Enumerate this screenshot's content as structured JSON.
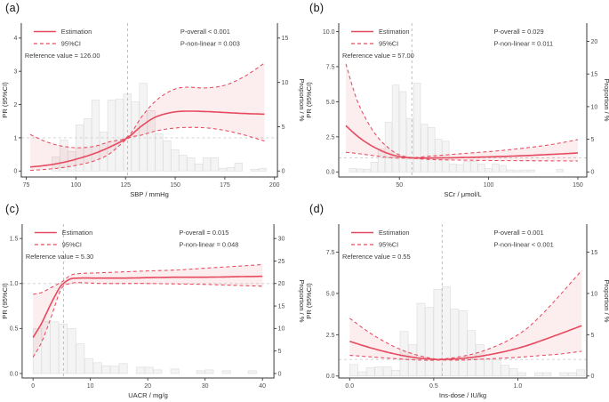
{
  "colors": {
    "accent": "#e64a5f",
    "ci_band": "rgba(230,74,95,0.10)",
    "hist_fill": "#f4f4f4",
    "hist_stroke": "#dfdfdf",
    "ref_line_vertical": "#b9b9b9",
    "ref_line_horizontal": "#cdcdcd",
    "axis": "#3a3a3a",
    "tick_text": "#4d4d4d",
    "title_text": "#2e2e2e",
    "annotation_text": "#3d3d3d"
  },
  "chart_data": [
    {
      "panel": "a",
      "label": "(a)",
      "type": "line",
      "xlabel": "SBP / mmHg",
      "ylabel_left": "PR (95%CI)",
      "ylabel_right": "Proportion / %",
      "legend": {
        "estimation": "Estimation",
        "ci": "95%CI",
        "reference": "Reference value = 126.00"
      },
      "p_overall": "P-overall < 0.001",
      "p_nonlinear": "P-non-linear = 0.003",
      "reference_x": 126,
      "reference_y": 1,
      "xlim": [
        72.5,
        201.5
      ],
      "x_ticks": [
        [
          75,
          "75"
        ],
        [
          100,
          "100"
        ],
        [
          125,
          "125"
        ],
        [
          150,
          "150"
        ],
        [
          175,
          "175"
        ],
        [
          200,
          "200"
        ]
      ],
      "ylim_left": [
        -0.18,
        4.45
      ],
      "y_left_ticks": [
        [
          0,
          "0"
        ],
        [
          1,
          "1"
        ],
        [
          2,
          "2"
        ],
        [
          3,
          "3"
        ],
        [
          4,
          "4"
        ]
      ],
      "pct_per_pr": 3.75,
      "y_right_ticks": [
        [
          0,
          "0"
        ],
        [
          5,
          "5"
        ],
        [
          10,
          "10"
        ],
        [
          15,
          "15"
        ]
      ],
      "curve": {
        "x": [
          77,
          85,
          93,
          101,
          109,
          117,
          126,
          133,
          140,
          148,
          155,
          165,
          175,
          185,
          195
        ],
        "est": [
          0.12,
          0.17,
          0.25,
          0.37,
          0.52,
          0.72,
          1.0,
          1.35,
          1.62,
          1.76,
          1.8,
          1.79,
          1.76,
          1.73,
          1.71
        ],
        "lo": [
          0.02,
          0.05,
          0.1,
          0.18,
          0.3,
          0.52,
          0.97,
          1.08,
          1.2,
          1.28,
          1.31,
          1.3,
          1.22,
          1.08,
          0.9
        ],
        "hi": [
          1.1,
          0.88,
          0.75,
          0.7,
          0.74,
          0.88,
          1.03,
          1.62,
          2.1,
          2.42,
          2.52,
          2.5,
          2.58,
          2.85,
          3.25
        ]
      },
      "histogram": {
        "bin_width": 4,
        "bars": [
          [
            88,
            1.6
          ],
          [
            92,
            3.5
          ],
          [
            96,
            2.2
          ],
          [
            100,
            5.2
          ],
          [
            104,
            5.9
          ],
          [
            108,
            8.0
          ],
          [
            112,
            4.4
          ],
          [
            116,
            8.0
          ],
          [
            120,
            8.1
          ],
          [
            124,
            8.7
          ],
          [
            128,
            7.8
          ],
          [
            132,
            9.9
          ],
          [
            136,
            6.8
          ],
          [
            140,
            4.2
          ],
          [
            144,
            3.4
          ],
          [
            148,
            2.4
          ],
          [
            152,
            1.8
          ],
          [
            156,
            1.5
          ],
          [
            160,
            0.8
          ],
          [
            164,
            1.5
          ],
          [
            168,
            1.5
          ],
          [
            172,
            0.3
          ],
          [
            176,
            0.4
          ],
          [
            180,
            0.9
          ],
          [
            188,
            0.2
          ],
          [
            192,
            0.3
          ]
        ]
      }
    },
    {
      "panel": "b",
      "label": "(b)",
      "type": "line",
      "xlabel": "SCr / μmol/L",
      "ylabel_left": "PR (95%CI)",
      "ylabel_right": "Proportion / %",
      "legend": {
        "estimation": "Estimation",
        "ci": "95%CI",
        "reference": "Reference value = 57.00"
      },
      "p_overall": "P-overall = 0.029",
      "p_nonlinear": "P-non-linear = 0.011",
      "reference_x": 57,
      "reference_y": 1,
      "xlim": [
        16,
        155
      ],
      "x_ticks": [
        [
          50,
          "50"
        ],
        [
          100,
          "100"
        ],
        [
          150,
          "150"
        ]
      ],
      "ylim_left": [
        -0.36,
        10.6
      ],
      "y_left_ticks": [
        [
          0,
          "0.0"
        ],
        [
          2.5,
          "2.5"
        ],
        [
          5,
          "5.0"
        ],
        [
          7.5,
          "7.5"
        ],
        [
          10,
          "10.0"
        ]
      ],
      "pct_per_pr": 2.15,
      "y_right_ticks": [
        [
          0,
          "0"
        ],
        [
          5,
          "5"
        ],
        [
          10,
          "10"
        ],
        [
          15,
          "15"
        ],
        [
          20,
          "20"
        ]
      ],
      "curve": {
        "x": [
          20,
          26,
          32,
          38,
          44,
          50,
          57,
          65,
          75,
          90,
          105,
          120,
          135,
          150
        ],
        "est": [
          3.3,
          2.6,
          2.05,
          1.62,
          1.3,
          1.09,
          1.0,
          0.99,
          1.0,
          1.04,
          1.09,
          1.16,
          1.25,
          1.35
        ],
        "lo": [
          1.4,
          1.32,
          1.22,
          1.12,
          1.03,
          0.98,
          0.97,
          0.9,
          0.86,
          0.83,
          0.81,
          0.8,
          0.79,
          0.78
        ],
        "hi": [
          7.7,
          5.2,
          3.6,
          2.45,
          1.7,
          1.22,
          1.03,
          1.1,
          1.2,
          1.35,
          1.5,
          1.7,
          1.95,
          2.3
        ]
      },
      "histogram": {
        "bin_width": 4,
        "bars": [
          [
            22,
            0.5
          ],
          [
            26,
            0.45
          ],
          [
            30,
            0.4
          ],
          [
            34,
            1.5
          ],
          [
            38,
            3.5
          ],
          [
            42,
            7.6
          ],
          [
            46,
            13.3
          ],
          [
            50,
            12.3
          ],
          [
            54,
            8.2
          ],
          [
            58,
            13.6
          ],
          [
            62,
            7.3
          ],
          [
            66,
            6.8
          ],
          [
            70,
            5.0
          ],
          [
            74,
            4.7
          ],
          [
            78,
            1.2
          ],
          [
            82,
            1.1
          ],
          [
            86,
            1.6
          ],
          [
            90,
            1.6
          ],
          [
            94,
            1.2
          ],
          [
            98,
            0.5
          ],
          [
            102,
            1.2
          ],
          [
            106,
            1.0
          ],
          [
            110,
            0.3
          ],
          [
            114,
            0.2
          ],
          [
            118,
            0.3
          ],
          [
            122,
            0.3
          ],
          [
            138,
            0.4
          ]
        ]
      }
    },
    {
      "panel": "c",
      "label": "(c)",
      "type": "line",
      "xlabel": "UACR / mg/g",
      "ylabel_left": "PR (95%CI)",
      "ylabel_right": "Proportion / %",
      "legend": {
        "estimation": "Estimation",
        "ci": "95%CI",
        "reference": "Reference value = 5.30"
      },
      "p_overall": "P-overall = 0.015",
      "p_nonlinear": "P-non-linear = 0.048",
      "reference_x": 5.3,
      "reference_y": 1,
      "xlim": [
        -1.9,
        42
      ],
      "x_ticks": [
        [
          0,
          "0"
        ],
        [
          10,
          "10"
        ],
        [
          20,
          "20"
        ],
        [
          30,
          "30"
        ],
        [
          40,
          "40"
        ]
      ],
      "ylim_left": [
        -0.05,
        1.66
      ],
      "y_left_ticks": [
        [
          0,
          "0.0"
        ],
        [
          0.5,
          "0.5"
        ],
        [
          1.0,
          "1.0"
        ],
        [
          1.5,
          "1.5"
        ]
      ],
      "pct_per_pr": 20,
      "y_right_ticks": [
        [
          0,
          "0"
        ],
        [
          5,
          "5"
        ],
        [
          10,
          "10"
        ],
        [
          15,
          "15"
        ],
        [
          20,
          "20"
        ],
        [
          25,
          "25"
        ],
        [
          30,
          "30"
        ]
      ],
      "curve": {
        "x": [
          0,
          1.5,
          3,
          4.5,
          5.3,
          6.5,
          8,
          12,
          16,
          20,
          25,
          30,
          35,
          40
        ],
        "est": [
          0.4,
          0.56,
          0.76,
          0.94,
          1.0,
          1.05,
          1.06,
          1.06,
          1.06,
          1.065,
          1.07,
          1.07,
          1.075,
          1.08
        ],
        "lo": [
          0.18,
          0.35,
          0.6,
          0.88,
          0.97,
          1.0,
          1.01,
          1.0,
          1.0,
          1.0,
          0.995,
          0.99,
          0.98,
          0.97
        ],
        "hi": [
          0.88,
          0.9,
          0.95,
          1.0,
          1.03,
          1.09,
          1.11,
          1.12,
          1.13,
          1.14,
          1.15,
          1.17,
          1.19,
          1.21
        ]
      },
      "histogram": {
        "bin_width": 1.5,
        "bars": [
          [
            0,
            10
          ],
          [
            1.5,
            11.5
          ],
          [
            3,
            11.5
          ],
          [
            4.5,
            11
          ],
          [
            6,
            10
          ],
          [
            7.5,
            6.6
          ],
          [
            9,
            3.3
          ],
          [
            10.5,
            2.4
          ],
          [
            12,
            1.7
          ],
          [
            13.5,
            1.6
          ],
          [
            15,
            2.2
          ],
          [
            18,
            1.4
          ],
          [
            19.5,
            1.4
          ],
          [
            21,
            0.8
          ],
          [
            24,
            1.0
          ],
          [
            28.5,
            0.6
          ],
          [
            30,
            0.8
          ],
          [
            33,
            0.6
          ],
          [
            37.5,
            0.6
          ]
        ]
      }
    },
    {
      "panel": "d",
      "label": "(d)",
      "type": "line",
      "xlabel": "Ins-dose / IU/kg",
      "ylabel_left": "PR (95%CI)",
      "ylabel_right": "Proportion / %",
      "legend": {
        "estimation": "Estimation",
        "ci": "95%CI",
        "reference": "Reference value = 0.55"
      },
      "p_overall": "P-overall = 0.001",
      "p_nonlinear": "P-non-linear < 0.001",
      "reference_x": 0.55,
      "reference_y": 1,
      "xlim": [
        -0.065,
        1.41
      ],
      "x_ticks": [
        [
          0,
          "0.0"
        ],
        [
          0.5,
          "0.5"
        ],
        [
          1.0,
          "1.0"
        ]
      ],
      "ylim_left": [
        -0.12,
        9.2
      ],
      "y_left_ticks": [
        [
          0,
          "0.0"
        ],
        [
          2.5,
          "2.5"
        ],
        [
          5,
          "5.0"
        ],
        [
          7.5,
          "7.5"
        ]
      ],
      "pct_per_pr": 2,
      "y_right_ticks": [
        [
          0,
          "0"
        ],
        [
          5,
          "5"
        ],
        [
          10,
          "10"
        ],
        [
          15,
          "15"
        ]
      ],
      "curve": {
        "x": [
          0,
          0.1,
          0.2,
          0.3,
          0.4,
          0.5,
          0.55,
          0.65,
          0.75,
          0.85,
          0.95,
          1.05,
          1.15,
          1.25,
          1.38
        ],
        "est": [
          2.1,
          1.78,
          1.5,
          1.27,
          1.1,
          1.01,
          1.0,
          1.05,
          1.16,
          1.33,
          1.55,
          1.83,
          2.18,
          2.55,
          3.05
        ],
        "lo": [
          1.25,
          1.18,
          1.1,
          1.03,
          0.97,
          0.95,
          0.97,
          0.96,
          1.0,
          1.05,
          1.1,
          1.17,
          1.25,
          1.33,
          1.5
        ],
        "hi": [
          3.5,
          2.75,
          2.12,
          1.62,
          1.27,
          1.05,
          1.03,
          1.16,
          1.38,
          1.73,
          2.2,
          2.85,
          3.8,
          4.9,
          6.4
        ]
      },
      "histogram": {
        "bin_width": 0.05,
        "bars": [
          [
            0,
            1.4
          ],
          [
            0.05,
            0.5
          ],
          [
            0.1,
            1.0
          ],
          [
            0.15,
            1.1
          ],
          [
            0.2,
            1.1
          ],
          [
            0.25,
            0.7
          ],
          [
            0.3,
            5.4
          ],
          [
            0.35,
            3.8
          ],
          [
            0.4,
            8.8
          ],
          [
            0.45,
            8.3
          ],
          [
            0.5,
            10.5
          ],
          [
            0.55,
            10.8
          ],
          [
            0.6,
            8.1
          ],
          [
            0.65,
            7.9
          ],
          [
            0.7,
            5.5
          ],
          [
            0.75,
            3.8
          ],
          [
            0.8,
            2.0
          ],
          [
            0.85,
            2.0
          ],
          [
            0.9,
            1.3
          ],
          [
            0.95,
            0.9
          ],
          [
            1.0,
            0.4
          ],
          [
            1.1,
            0.4
          ],
          [
            1.15,
            0.4
          ],
          [
            1.25,
            0.4
          ],
          [
            1.3,
            0.4
          ],
          [
            1.35,
            0.75
          ]
        ]
      }
    }
  ]
}
